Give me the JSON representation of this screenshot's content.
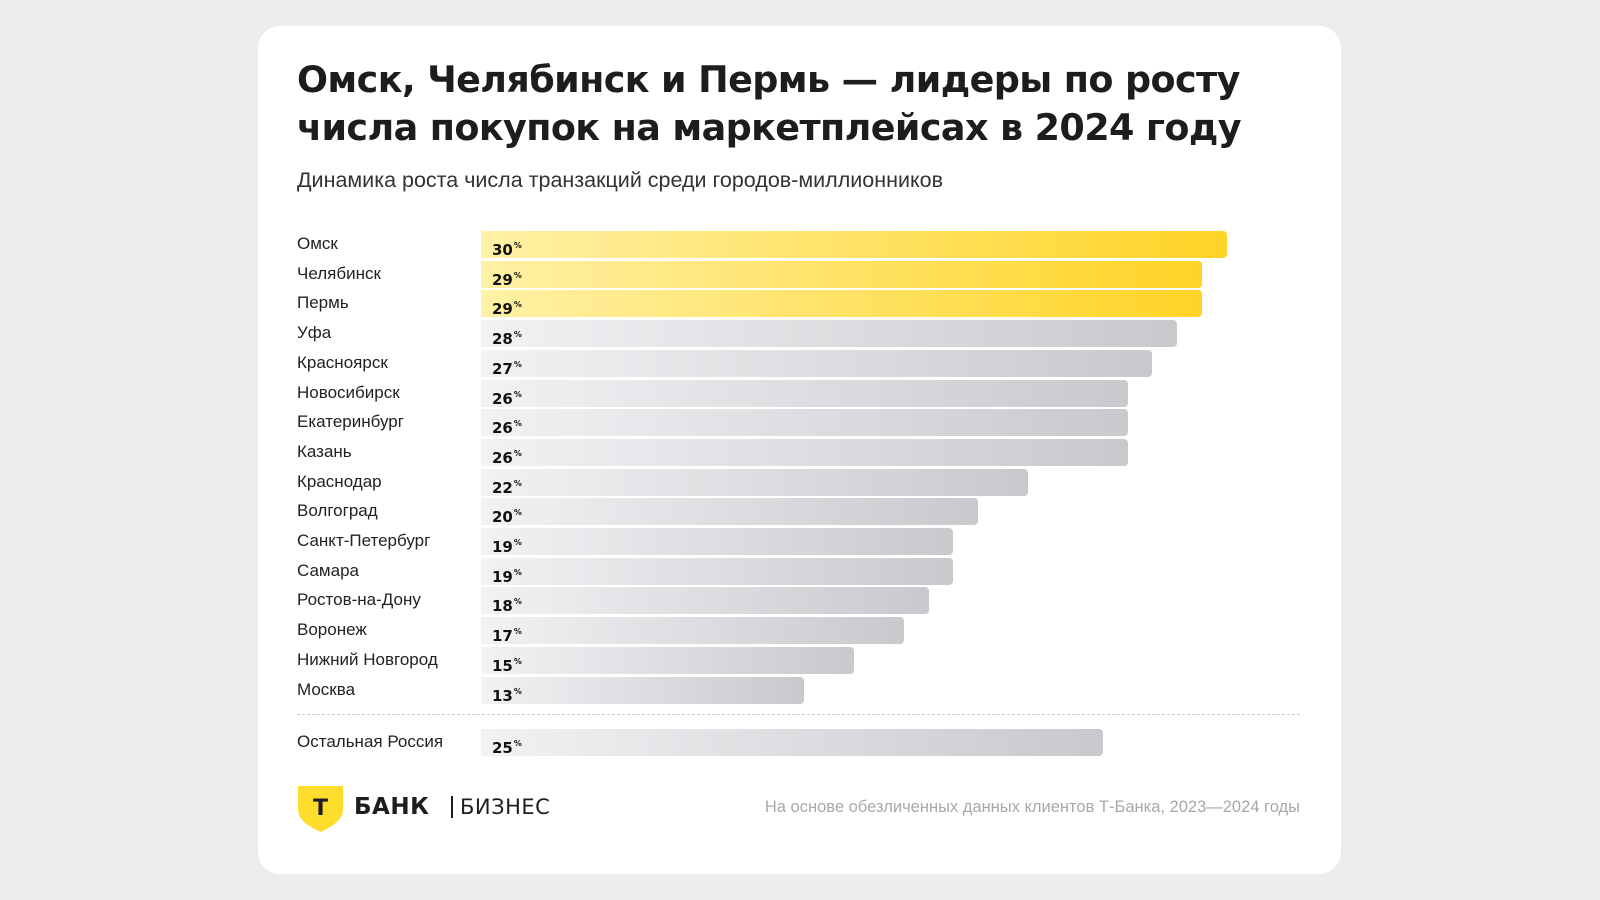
{
  "header": {
    "title": "Омск, Челябинск и Пермь — лидеры по росту числа покупок на маркетплейсах в 2024 году",
    "subtitle": "Динамика роста числа транзакций среди городов-миллионников"
  },
  "chart_data": {
    "type": "bar",
    "orientation": "horizontal",
    "title": "Омск, Челябинск и Пермь — лидеры по росту числа покупок на маркетплейсах в 2024 году",
    "subtitle": "Динамика роста числа транзакций среди городов-миллионников",
    "unit": "%",
    "categories": [
      "Омск",
      "Челябинск",
      "Пермь",
      "Уфа",
      "Красноярск",
      "Новосибирск",
      "Екатеринбург",
      "Казань",
      "Краснодар",
      "Волгоград",
      "Санкт-Петербург",
      "Самара",
      "Ростов-на-Дону",
      "Воронеж",
      "Нижний Новгород",
      "Москва"
    ],
    "values": [
      30,
      29,
      29,
      28,
      27,
      26,
      26,
      26,
      22,
      20,
      19,
      19,
      18,
      17,
      15,
      13
    ],
    "highlighted": [
      "Омск",
      "Челябинск",
      "Пермь"
    ],
    "reference": {
      "label": "Остальная Россия",
      "value": 25
    },
    "colors": {
      "highlight_start": "#fff1a6",
      "highlight_end": "#ffd426",
      "base_start": "#f1f2f4",
      "base_end": "#c7c9cc"
    }
  },
  "footer": {
    "brand": "БАНК",
    "brand_mark": "Т",
    "brand_suffix": "БИЗНЕС",
    "note": "На основе обезличенных данных клиентов Т-Банка, 2023—2024 годы"
  }
}
